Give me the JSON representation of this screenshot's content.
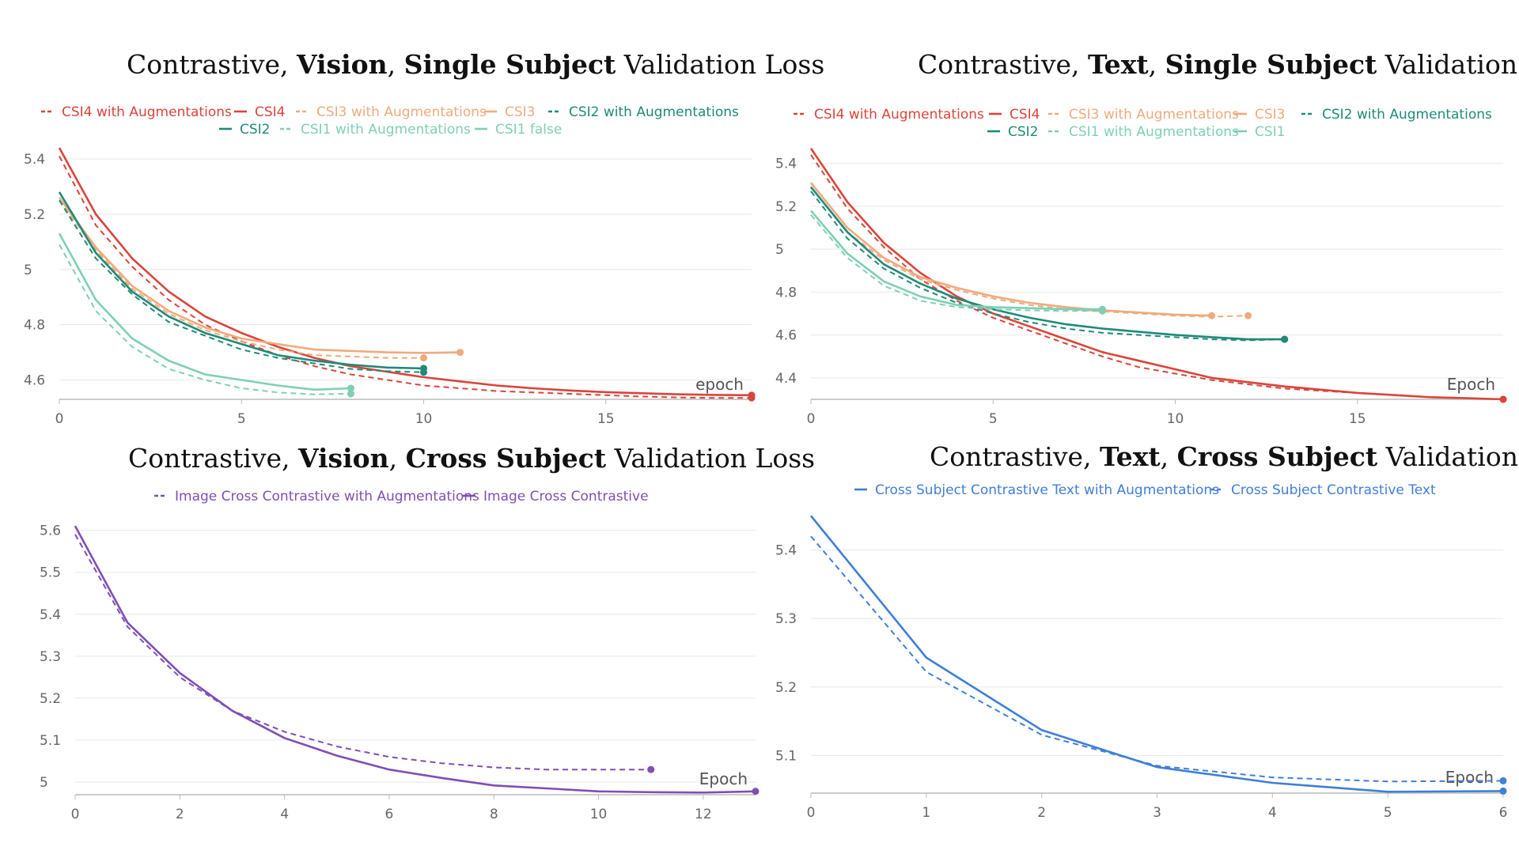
{
  "chart_data": [
    {
      "type": "line",
      "title_parts": [
        "Contrastive, ",
        "Vision",
        ", ",
        "Single Subject",
        " Validation Loss"
      ],
      "xlabel": "epoch",
      "ylabel": "",
      "xlim": [
        0,
        19
      ],
      "ylim": [
        4.53,
        5.46
      ],
      "xticks": [
        0,
        5,
        10,
        15
      ],
      "yticks": [
        4.6,
        4.8,
        5,
        5.2,
        5.4
      ],
      "ytick_labels": [
        "4.6",
        "4.8",
        "5",
        "5.2",
        "5.4"
      ],
      "grid": true,
      "legend_position": "top",
      "series": [
        {
          "name": "CSI4 with Augmentations",
          "color": "#d9453b",
          "dash": true,
          "x": [
            0,
            1,
            2,
            3,
            4,
            5,
            6,
            7,
            8,
            9,
            10,
            11,
            12,
            13,
            14,
            15,
            16,
            17,
            18,
            19
          ],
          "y": [
            5.41,
            5.16,
            5.01,
            4.89,
            4.8,
            4.74,
            4.69,
            4.65,
            4.62,
            4.6,
            4.58,
            4.57,
            4.56,
            4.555,
            4.55,
            4.545,
            4.54,
            4.537,
            4.535,
            4.535
          ]
        },
        {
          "name": "CSI4",
          "color": "#d9453b",
          "dash": false,
          "x": [
            0,
            1,
            2,
            3,
            4,
            5,
            6,
            7,
            8,
            9,
            10,
            11,
            12,
            13,
            14,
            15,
            16,
            17,
            18,
            19
          ],
          "y": [
            5.44,
            5.2,
            5.04,
            4.92,
            4.83,
            4.77,
            4.72,
            4.68,
            4.65,
            4.63,
            4.61,
            4.595,
            4.58,
            4.57,
            4.562,
            4.556,
            4.552,
            4.548,
            4.546,
            4.545
          ]
        },
        {
          "name": "CSI3 with Augmentations",
          "color": "#f0aa7c",
          "dash": true,
          "x": [
            0,
            1,
            2,
            3,
            4,
            5,
            6,
            7,
            8,
            9,
            10
          ],
          "y": [
            5.25,
            5.07,
            4.93,
            4.84,
            4.78,
            4.74,
            4.71,
            4.69,
            4.685,
            4.68,
            4.68
          ]
        },
        {
          "name": "CSI3",
          "color": "#f0aa7c",
          "dash": false,
          "x": [
            0,
            1,
            2,
            3,
            4,
            5,
            6,
            7,
            8,
            9,
            10,
            11
          ],
          "y": [
            5.26,
            5.08,
            4.94,
            4.85,
            4.79,
            4.75,
            4.73,
            4.71,
            4.705,
            4.7,
            4.698,
            4.7
          ]
        },
        {
          "name": "CSI2 with Augmentations",
          "color": "#1f8a78",
          "dash": true,
          "x": [
            0,
            1,
            2,
            3,
            4,
            5,
            6,
            7,
            8,
            9,
            10
          ],
          "y": [
            5.25,
            5.04,
            4.91,
            4.81,
            4.76,
            4.71,
            4.68,
            4.66,
            4.64,
            4.632,
            4.628
          ]
        },
        {
          "name": "CSI2",
          "color": "#1f8a78",
          "dash": false,
          "x": [
            0,
            1,
            2,
            3,
            4,
            5,
            6,
            7,
            8,
            9,
            10
          ],
          "y": [
            5.28,
            5.06,
            4.92,
            4.83,
            4.77,
            4.73,
            4.69,
            4.67,
            4.655,
            4.645,
            4.642
          ]
        },
        {
          "name": "CSI1 with Augmentations",
          "color": "#7fcfb6",
          "dash": true,
          "x": [
            0,
            1,
            2,
            3,
            4,
            5,
            6,
            7,
            8
          ],
          "y": [
            5.09,
            4.85,
            4.72,
            4.64,
            4.6,
            4.57,
            4.555,
            4.548,
            4.55
          ]
        },
        {
          "name": "CSI1 false",
          "color": "#7fcfb6",
          "dash": false,
          "x": [
            0,
            1,
            2,
            3,
            4,
            5,
            6,
            7,
            8
          ],
          "y": [
            5.13,
            4.89,
            4.75,
            4.67,
            4.62,
            4.6,
            4.58,
            4.565,
            4.57
          ]
        }
      ]
    },
    {
      "type": "line",
      "title_parts": [
        "Contrastive, ",
        "Text",
        ", ",
        "Single Subject",
        " Validation Loss"
      ],
      "xlabel": "Epoch",
      "ylabel": "",
      "xlim": [
        0,
        19
      ],
      "ylim": [
        4.3,
        5.48
      ],
      "xticks": [
        0,
        5,
        10,
        15
      ],
      "yticks": [
        4.4,
        4.6,
        4.8,
        5,
        5.2,
        5.4
      ],
      "ytick_labels": [
        "4.4",
        "4.6",
        "4.8",
        "5",
        "5.2",
        "5.4"
      ],
      "grid": true,
      "legend_position": "top",
      "series": [
        {
          "name": "CSI4 with Augmentations",
          "color": "#d9453b",
          "dash": true,
          "x": [
            0,
            1,
            2,
            3,
            4,
            5,
            6,
            7,
            8,
            9,
            10,
            11,
            12,
            13,
            14,
            15,
            16,
            17,
            18,
            19
          ],
          "y": [
            5.44,
            5.19,
            5.01,
            4.86,
            4.76,
            4.68,
            4.62,
            4.56,
            4.5,
            4.45,
            4.42,
            4.39,
            4.37,
            4.35,
            4.34,
            4.33,
            4.32,
            4.31,
            4.305,
            4.3
          ]
        },
        {
          "name": "CSI4",
          "color": "#d9453b",
          "dash": false,
          "x": [
            0,
            1,
            2,
            3,
            4,
            5,
            6,
            7,
            8,
            9,
            10,
            11,
            12,
            13,
            14,
            15,
            16,
            17,
            18,
            19
          ],
          "y": [
            5.47,
            5.22,
            5.03,
            4.89,
            4.78,
            4.7,
            4.64,
            4.58,
            4.52,
            4.48,
            4.44,
            4.4,
            4.38,
            4.36,
            4.345,
            4.33,
            4.32,
            4.31,
            4.305,
            4.3
          ]
        },
        {
          "name": "CSI3 with Augmentations",
          "color": "#f0aa7c",
          "dash": true,
          "x": [
            0,
            1,
            2,
            3,
            4,
            5,
            6,
            7,
            8,
            9,
            10,
            11,
            12
          ],
          "y": [
            5.29,
            5.08,
            4.95,
            4.86,
            4.81,
            4.77,
            4.74,
            4.72,
            4.71,
            4.7,
            4.69,
            4.685,
            4.69
          ]
        },
        {
          "name": "CSI3",
          "color": "#f0aa7c",
          "dash": false,
          "x": [
            0,
            1,
            2,
            3,
            4,
            5,
            6,
            7,
            8,
            9,
            10,
            11
          ],
          "y": [
            5.31,
            5.1,
            4.96,
            4.87,
            4.82,
            4.78,
            4.75,
            4.73,
            4.715,
            4.705,
            4.695,
            4.69
          ]
        },
        {
          "name": "CSI2 with Augmentations",
          "color": "#1f8a78",
          "dash": true,
          "x": [
            0,
            1,
            2,
            3,
            4,
            5,
            6,
            7,
            8,
            9,
            10,
            11,
            12,
            13
          ],
          "y": [
            5.27,
            5.05,
            4.91,
            4.82,
            4.75,
            4.7,
            4.66,
            4.63,
            4.61,
            4.6,
            4.59,
            4.58,
            4.575,
            4.58
          ]
        },
        {
          "name": "CSI2",
          "color": "#1f8a78",
          "dash": false,
          "x": [
            0,
            1,
            2,
            3,
            4,
            5,
            6,
            7,
            8,
            9,
            10,
            11,
            12,
            13
          ],
          "y": [
            5.29,
            5.08,
            4.93,
            4.84,
            4.77,
            4.72,
            4.68,
            4.65,
            4.63,
            4.615,
            4.6,
            4.59,
            4.58,
            4.58
          ]
        },
        {
          "name": "CSI1 with Augmentations",
          "color": "#7fcfb6",
          "dash": true,
          "x": [
            0,
            1,
            2,
            3,
            4,
            5,
            6,
            7,
            8
          ],
          "y": [
            5.16,
            4.96,
            4.83,
            4.76,
            4.73,
            4.72,
            4.715,
            4.712,
            4.712
          ]
        },
        {
          "name": "CSI1",
          "color": "#7fcfb6",
          "dash": false,
          "x": [
            0,
            1,
            2,
            3,
            4,
            5,
            6,
            7,
            8
          ],
          "y": [
            5.18,
            4.98,
            4.85,
            4.78,
            4.74,
            4.73,
            4.725,
            4.72,
            4.72
          ]
        }
      ]
    },
    {
      "type": "line",
      "title_parts": [
        "Contrastive, ",
        "Vision",
        ", ",
        "Cross Subject",
        " Validation Loss"
      ],
      "xlabel": "Epoch",
      "ylabel": "",
      "xlim": [
        0,
        13
      ],
      "ylim": [
        4.97,
        5.62
      ],
      "xticks": [
        0,
        2,
        4,
        6,
        8,
        10,
        12
      ],
      "yticks": [
        5,
        5.1,
        5.2,
        5.3,
        5.4,
        5.5,
        5.6
      ],
      "ytick_labels": [
        "5",
        "5.1",
        "5.2",
        "5.3",
        "5.4",
        "5.5",
        "5.6"
      ],
      "grid": true,
      "legend_position": "top",
      "series": [
        {
          "name": "Image Cross Contrastive with Augmentations",
          "color": "#7e4fb5",
          "dash": true,
          "x": [
            0,
            1,
            2,
            3,
            4,
            5,
            6,
            7,
            8,
            9,
            10,
            11
          ],
          "y": [
            5.59,
            5.37,
            5.25,
            5.17,
            5.12,
            5.085,
            5.06,
            5.045,
            5.035,
            5.03,
            5.03,
            5.03
          ]
        },
        {
          "name": "Image Cross Contrastive",
          "color": "#7e4fb5",
          "dash": false,
          "x": [
            0,
            1,
            2,
            3,
            4,
            5,
            6,
            7,
            8,
            9,
            10,
            11,
            12,
            13
          ],
          "y": [
            5.61,
            5.38,
            5.26,
            5.17,
            5.105,
            5.063,
            5.03,
            5.01,
            4.992,
            4.985,
            4.978,
            4.976,
            4.975,
            4.978
          ]
        }
      ]
    },
    {
      "type": "line",
      "title_parts": [
        "Contrastive, ",
        "Text",
        ", ",
        "Cross Subject",
        " Validation Loss"
      ],
      "xlabel": "Epoch",
      "ylabel": "",
      "xlim": [
        0,
        6
      ],
      "ylim": [
        5.045,
        5.455
      ],
      "xticks": [
        0,
        1,
        2,
        3,
        4,
        5,
        6
      ],
      "yticks": [
        5.1,
        5.2,
        5.3,
        5.4
      ],
      "ytick_labels": [
        "5.1",
        "5.2",
        "5.3",
        "5.4"
      ],
      "grid": true,
      "legend_position": "top",
      "series": [
        {
          "name": "Cross Subject Contrastive Text with Augmentations",
          "color": "#3f7fd6",
          "dash": false,
          "x": [
            0,
            1,
            2,
            3,
            4,
            5,
            6
          ],
          "y": [
            5.45,
            5.243,
            5.137,
            5.083,
            5.06,
            5.047,
            5.048
          ]
        },
        {
          "name": "Cross Subject Contrastive Text",
          "color": "#3f7fd6",
          "dash": true,
          "x": [
            0,
            1,
            2,
            3,
            4,
            5,
            6
          ],
          "y": [
            5.42,
            5.222,
            5.13,
            5.085,
            5.068,
            5.062,
            5.063
          ]
        }
      ]
    }
  ]
}
